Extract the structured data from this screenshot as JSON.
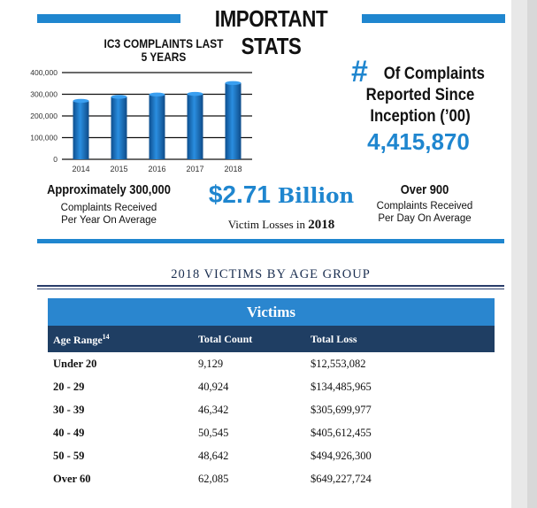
{
  "header": {
    "title": "IMPORTANT STATS"
  },
  "chart_data": {
    "type": "bar",
    "title": "IC3 COMPLAINTS LAST 5 YEARS",
    "categories": [
      "2014",
      "2015",
      "2016",
      "2017",
      "2018"
    ],
    "values": [
      269422,
      288012,
      298728,
      301580,
      351937
    ],
    "ylim": [
      0,
      400000
    ],
    "yticks": [
      0,
      100000,
      200000,
      300000,
      400000
    ],
    "ytick_labels": [
      "0",
      "100,000",
      "200,000",
      "300,000",
      "400,000"
    ],
    "bar_color": "#1f6fb8"
  },
  "complaints": {
    "hash": "#",
    "label_line1": "Of Complaints",
    "label_line2": "Reported Since",
    "label_line3": "Inception (’00)",
    "total": "4,415,870"
  },
  "stats": {
    "per_year_head": "Approximately 300,000",
    "per_year_sub1": "Complaints Received",
    "per_year_sub2": "Per Year On Average",
    "losses_value": "$2.71",
    "losses_unit": "Billion",
    "losses_sub": "Victim Losses in",
    "losses_year": "2018",
    "per_day_head": "Over 900",
    "per_day_sub1": "Complaints Received",
    "per_day_sub2": "Per Day On Average"
  },
  "age_group": {
    "title": "2018 VICTIMS BY AGE GROUP",
    "table_title": "Victims",
    "columns": [
      "Age Range",
      "Total Count",
      "Total Loss"
    ],
    "footnote_mark": "14",
    "rows": [
      {
        "range": "Under 20",
        "count": "9,129",
        "loss": "$12,553,082"
      },
      {
        "range": "20 - 29",
        "count": "40,924",
        "loss": "$134,485,965"
      },
      {
        "range": "30 - 39",
        "count": "46,342",
        "loss": "$305,699,977"
      },
      {
        "range": "40 - 49",
        "count": "50,545",
        "loss": "$405,612,455"
      },
      {
        "range": "50 - 59",
        "count": "48,642",
        "loss": "$494,926,300"
      },
      {
        "range": "Over 60",
        "count": "62,085",
        "loss": "$649,227,724"
      }
    ]
  }
}
